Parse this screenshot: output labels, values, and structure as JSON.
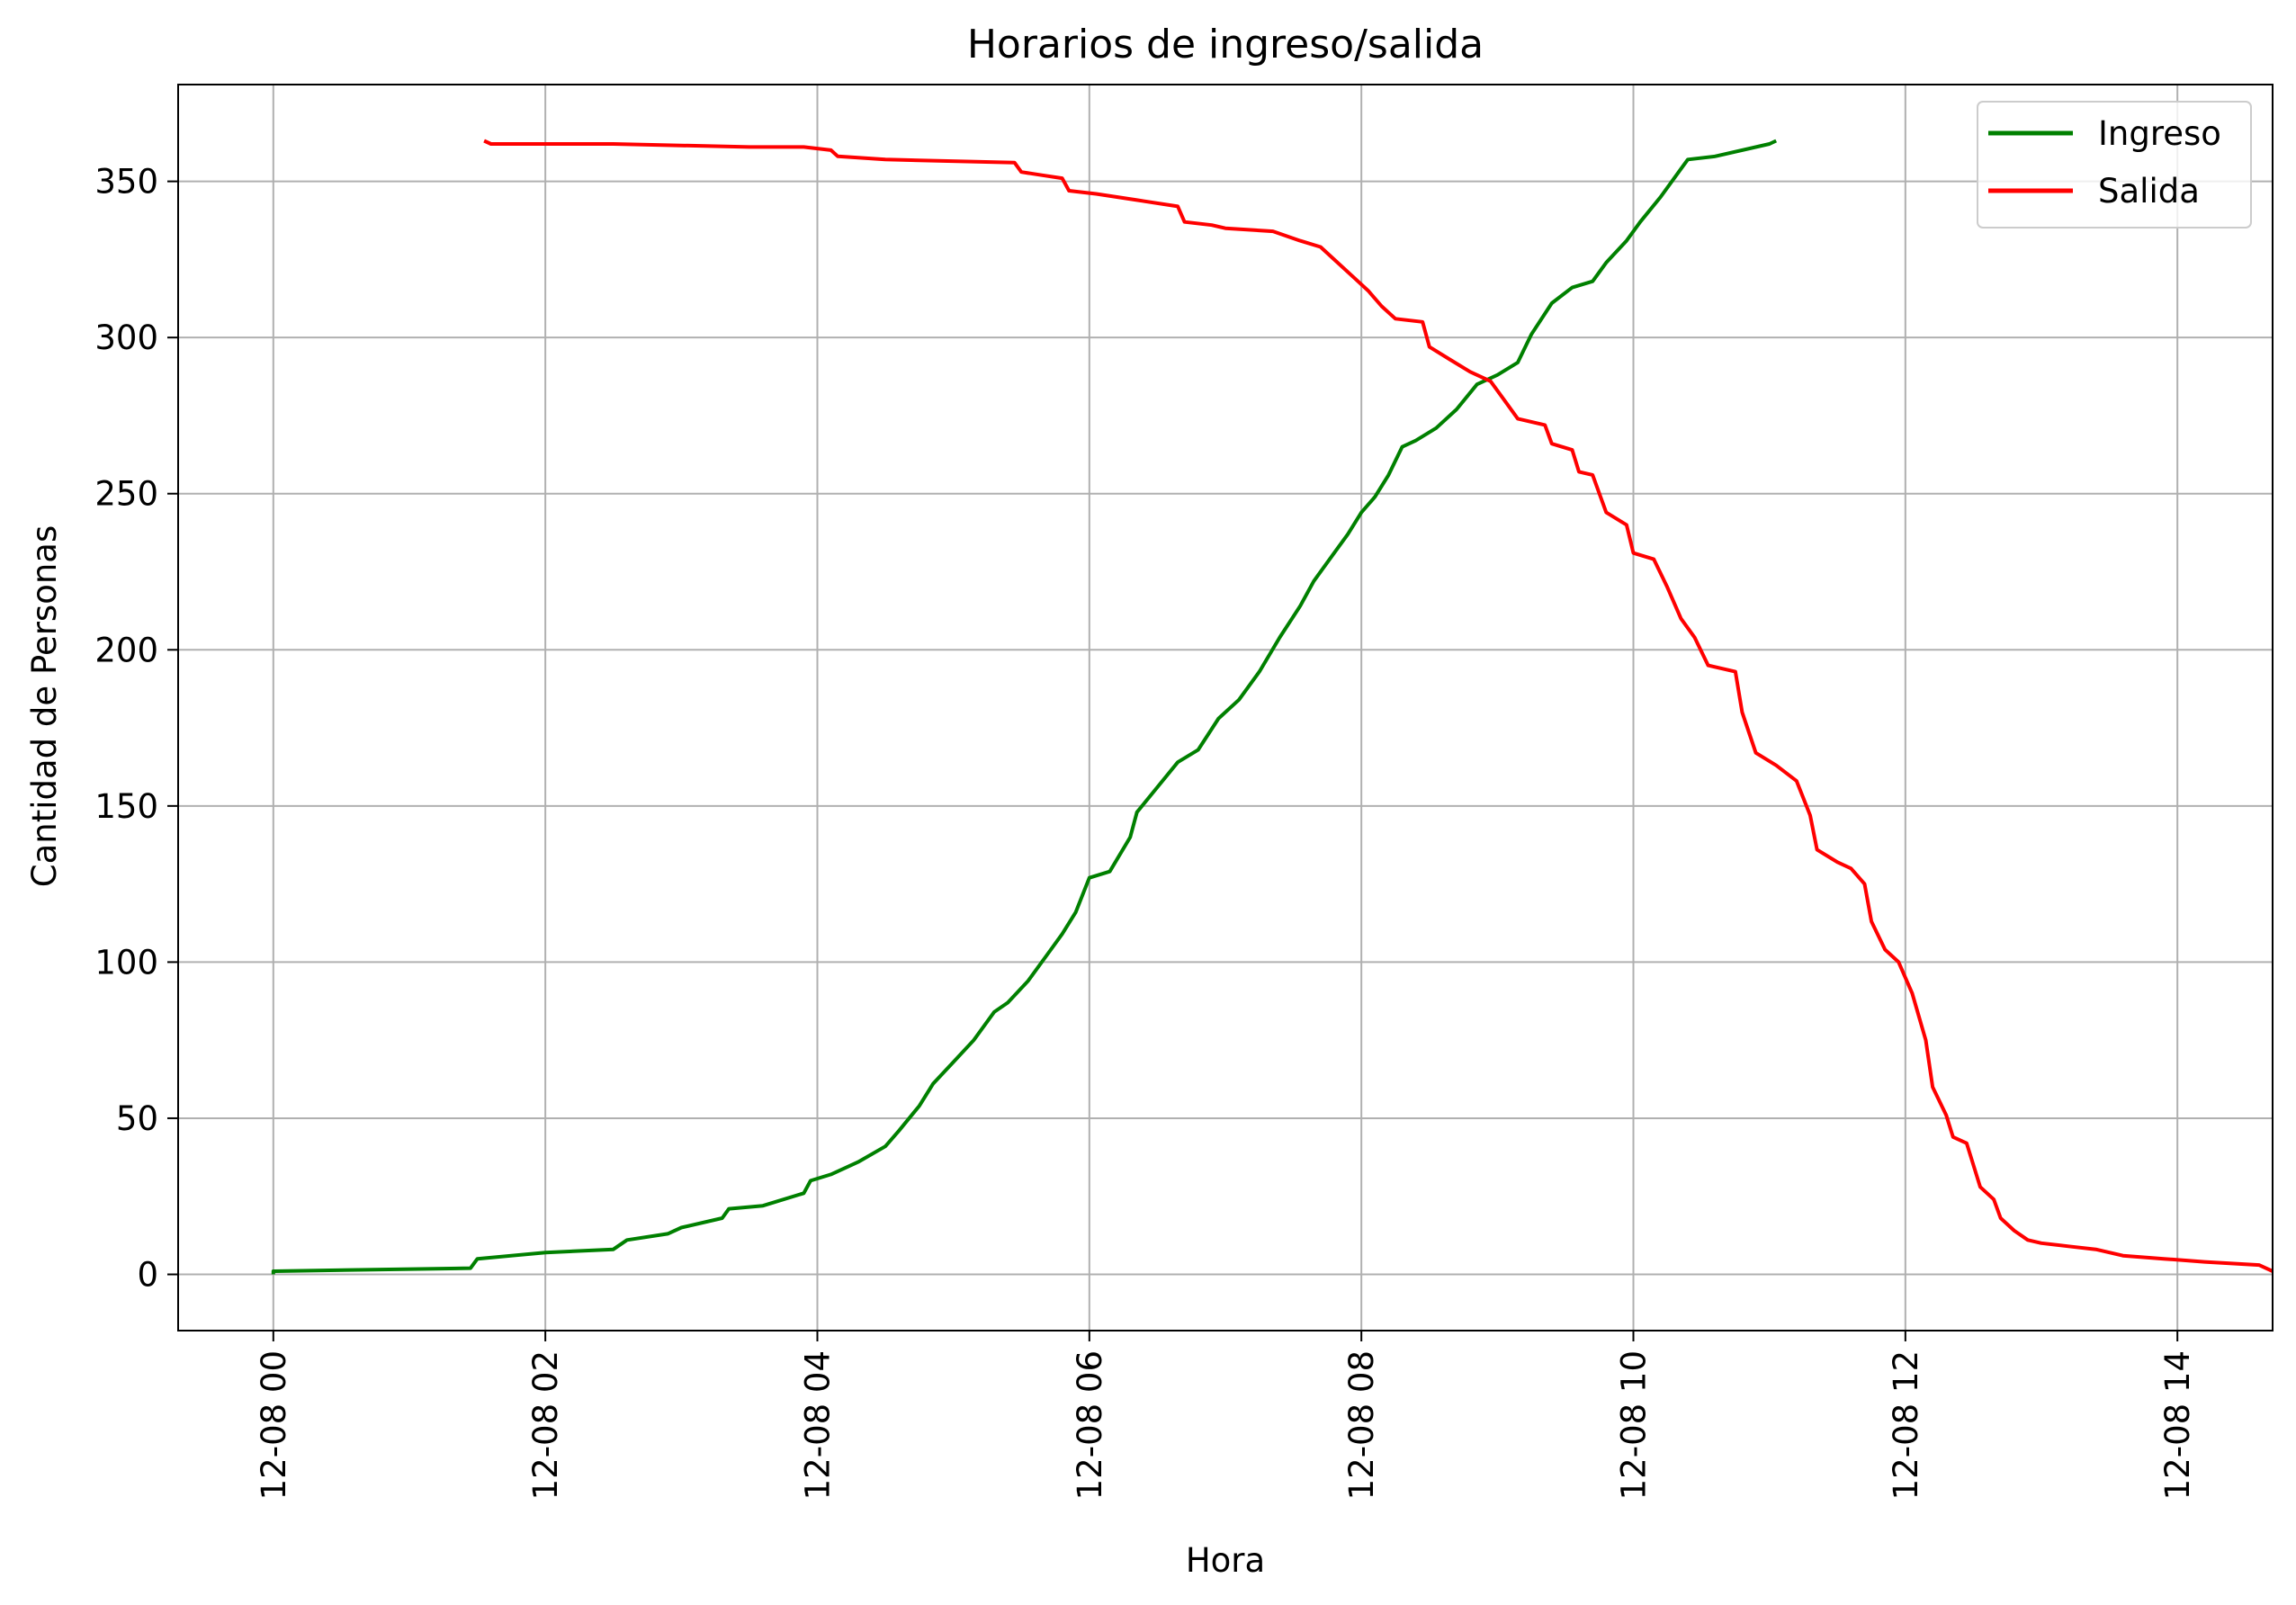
{
  "chart_data": {
    "type": "line",
    "title": "Horarios de ingreso/salida",
    "xlabel": "Hora",
    "ylabel": "Cantidad de Personas",
    "x_unit": "hours",
    "xlim": [
      -0.7,
      14.7
    ],
    "ylim": [
      -18,
      381
    ],
    "x_ticks": [
      {
        "value": 0,
        "label": "12-08 00"
      },
      {
        "value": 2,
        "label": "12-08 02"
      },
      {
        "value": 4,
        "label": "12-08 04"
      },
      {
        "value": 6,
        "label": "12-08 06"
      },
      {
        "value": 8,
        "label": "12-08 08"
      },
      {
        "value": 10,
        "label": "12-08 10"
      },
      {
        "value": 12,
        "label": "12-08 12"
      },
      {
        "value": 14,
        "label": "12-08 14"
      }
    ],
    "y_ticks": [
      {
        "value": 0,
        "label": "0"
      },
      {
        "value": 50,
        "label": "50"
      },
      {
        "value": 100,
        "label": "100"
      },
      {
        "value": 150,
        "label": "150"
      },
      {
        "value": 200,
        "label": "200"
      },
      {
        "value": 250,
        "label": "250"
      },
      {
        "value": 300,
        "label": "300"
      },
      {
        "value": 350,
        "label": "350"
      }
    ],
    "grid": true,
    "legend_position": "top-right",
    "series": [
      {
        "name": "Ingreso",
        "color": "#008000",
        "points": [
          [
            0.0,
            0
          ],
          [
            0.0,
            1
          ],
          [
            1.45,
            2
          ],
          [
            1.5,
            5
          ],
          [
            2.0,
            7
          ],
          [
            2.5,
            8
          ],
          [
            2.6,
            11
          ],
          [
            2.9,
            13
          ],
          [
            3.0,
            15
          ],
          [
            3.3,
            18
          ],
          [
            3.35,
            21
          ],
          [
            3.6,
            22
          ],
          [
            3.9,
            26
          ],
          [
            3.95,
            30
          ],
          [
            4.1,
            32
          ],
          [
            4.3,
            36
          ],
          [
            4.5,
            41
          ],
          [
            4.6,
            46
          ],
          [
            4.75,
            54
          ],
          [
            4.85,
            61
          ],
          [
            5.0,
            68
          ],
          [
            5.15,
            75
          ],
          [
            5.3,
            84
          ],
          [
            5.4,
            87
          ],
          [
            5.55,
            94
          ],
          [
            5.7,
            103
          ],
          [
            5.8,
            109
          ],
          [
            5.9,
            116
          ],
          [
            6.0,
            127
          ],
          [
            6.15,
            129
          ],
          [
            6.3,
            140
          ],
          [
            6.35,
            148
          ],
          [
            6.5,
            156
          ],
          [
            6.65,
            164
          ],
          [
            6.8,
            168
          ],
          [
            6.95,
            178
          ],
          [
            7.1,
            184
          ],
          [
            7.25,
            193
          ],
          [
            7.4,
            204
          ],
          [
            7.55,
            214
          ],
          [
            7.65,
            222
          ],
          [
            7.8,
            231
          ],
          [
            7.9,
            237
          ],
          [
            8.0,
            244
          ],
          [
            8.1,
            249
          ],
          [
            8.2,
            256
          ],
          [
            8.3,
            265
          ],
          [
            8.4,
            267
          ],
          [
            8.55,
            271
          ],
          [
            8.7,
            277
          ],
          [
            8.85,
            285
          ],
          [
            9.0,
            288
          ],
          [
            9.15,
            292
          ],
          [
            9.25,
            301
          ],
          [
            9.4,
            311
          ],
          [
            9.55,
            316
          ],
          [
            9.7,
            318
          ],
          [
            9.8,
            324
          ],
          [
            9.95,
            331
          ],
          [
            10.05,
            337
          ],
          [
            10.2,
            345
          ],
          [
            10.35,
            354
          ],
          [
            10.4,
            357
          ],
          [
            10.6,
            358
          ],
          [
            11.0,
            362
          ],
          [
            11.05,
            363
          ]
        ]
      },
      {
        "name": "Salida",
        "color": "#ff0000",
        "points": [
          [
            1.55,
            363
          ],
          [
            1.6,
            362
          ],
          [
            2.5,
            362
          ],
          [
            3.5,
            361
          ],
          [
            3.9,
            361
          ],
          [
            4.1,
            360
          ],
          [
            4.15,
            358
          ],
          [
            4.5,
            357
          ],
          [
            5.45,
            356
          ],
          [
            5.5,
            353
          ],
          [
            5.65,
            352
          ],
          [
            5.8,
            351
          ],
          [
            5.85,
            347
          ],
          [
            6.05,
            346
          ],
          [
            6.35,
            344
          ],
          [
            6.65,
            342
          ],
          [
            6.7,
            337
          ],
          [
            6.9,
            336
          ],
          [
            7.0,
            335
          ],
          [
            7.35,
            334
          ],
          [
            7.55,
            331
          ],
          [
            7.7,
            329
          ],
          [
            7.8,
            325
          ],
          [
            7.95,
            319
          ],
          [
            8.05,
            315
          ],
          [
            8.15,
            310
          ],
          [
            8.25,
            306
          ],
          [
            8.45,
            305
          ],
          [
            8.5,
            297
          ],
          [
            8.65,
            293
          ],
          [
            8.8,
            289
          ],
          [
            8.95,
            286
          ],
          [
            9.05,
            280
          ],
          [
            9.15,
            274
          ],
          [
            9.35,
            272
          ],
          [
            9.4,
            266
          ],
          [
            9.55,
            264
          ],
          [
            9.6,
            257
          ],
          [
            9.7,
            256
          ],
          [
            9.8,
            244
          ],
          [
            9.95,
            240
          ],
          [
            10.0,
            231
          ],
          [
            10.15,
            229
          ],
          [
            10.25,
            220
          ],
          [
            10.35,
            210
          ],
          [
            10.45,
            204
          ],
          [
            10.55,
            195
          ],
          [
            10.75,
            193
          ],
          [
            10.8,
            180
          ],
          [
            10.9,
            167
          ],
          [
            11.05,
            163
          ],
          [
            11.2,
            158
          ],
          [
            11.3,
            147
          ],
          [
            11.35,
            136
          ],
          [
            11.5,
            132
          ],
          [
            11.6,
            130
          ],
          [
            11.7,
            125
          ],
          [
            11.75,
            113
          ],
          [
            11.85,
            104
          ],
          [
            11.95,
            100
          ],
          [
            12.05,
            90
          ],
          [
            12.15,
            75
          ],
          [
            12.2,
            60
          ],
          [
            12.3,
            51
          ],
          [
            12.35,
            44
          ],
          [
            12.45,
            42
          ],
          [
            12.55,
            28
          ],
          [
            12.65,
            24
          ],
          [
            12.7,
            18
          ],
          [
            12.8,
            14
          ],
          [
            12.9,
            11
          ],
          [
            13.0,
            10
          ],
          [
            13.2,
            9
          ],
          [
            13.4,
            8
          ],
          [
            13.6,
            6
          ],
          [
            13.9,
            5
          ],
          [
            14.2,
            4
          ],
          [
            14.6,
            3
          ],
          [
            14.7,
            1
          ]
        ]
      }
    ]
  }
}
